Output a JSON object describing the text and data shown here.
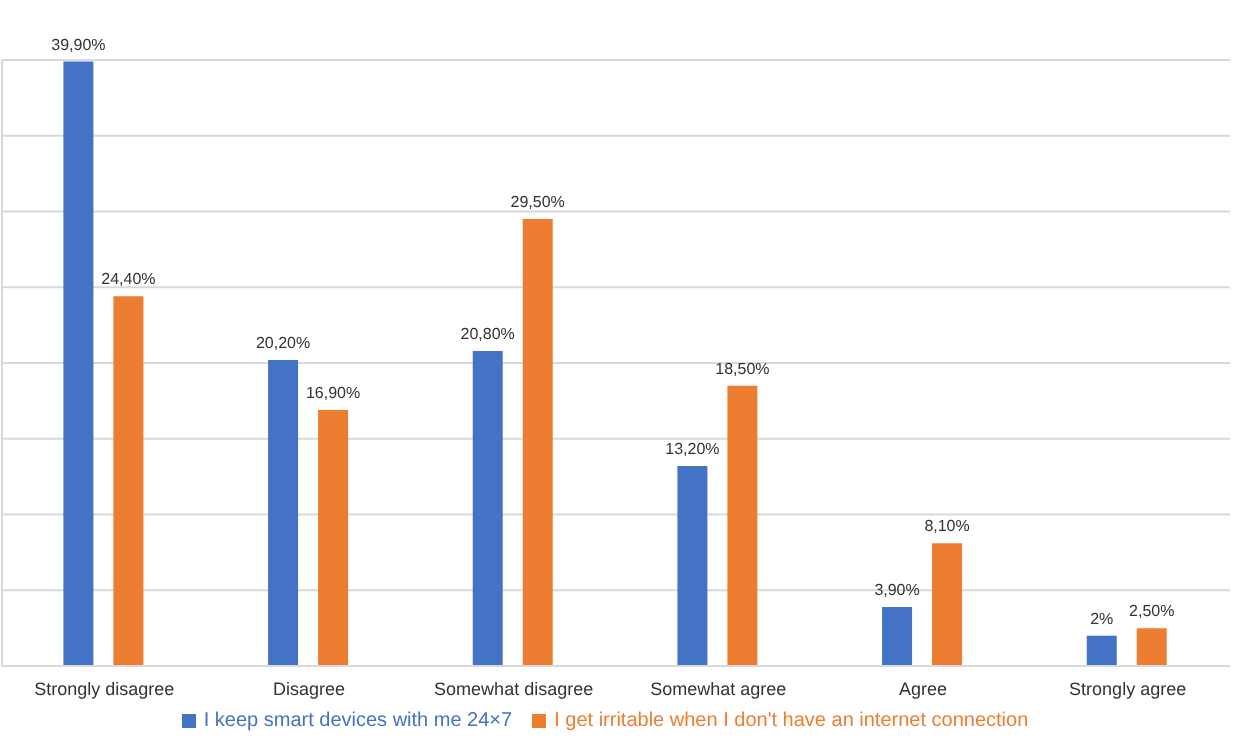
{
  "chart_data": {
    "type": "bar",
    "categories": [
      "Strongly disagree",
      "Disagree",
      "Somewhat disagree",
      "Somewhat agree",
      "Agree",
      "Strongly agree"
    ],
    "series": [
      {
        "name": "I keep smart devices with me 24×7",
        "color": "#4472c4",
        "values": [
          39.9,
          20.2,
          20.8,
          13.2,
          3.9,
          2
        ],
        "value_labels": [
          "39,90%",
          "20,20%",
          "20,80%",
          "13,20%",
          "3,90%",
          "2%"
        ]
      },
      {
        "name": "I get irritable when I don't have an internet connection",
        "color": "#ed7d31",
        "values": [
          24.4,
          16.9,
          29.5,
          18.5,
          8.1,
          2.5
        ],
        "value_labels": [
          "24,40%",
          "16,90%",
          "29,50%",
          "18,50%",
          "8,10%",
          "2,50%"
        ]
      }
    ],
    "ylim": [
      0,
      40
    ],
    "yticks": [
      {
        "value": 0,
        "label": null
      },
      {
        "value": 5,
        "label": null
      },
      {
        "value": 10,
        "label": null
      },
      {
        "value": 15,
        "label": null
      },
      {
        "value": 20,
        "label": null
      },
      {
        "value": 25,
        "label": null
      },
      {
        "value": 30,
        "label": null
      },
      {
        "value": 35,
        "label": null
      },
      {
        "value": 40,
        "label": null
      }
    ],
    "tick_labels": "x",
    "grid": "y",
    "legend": "bottom"
  }
}
